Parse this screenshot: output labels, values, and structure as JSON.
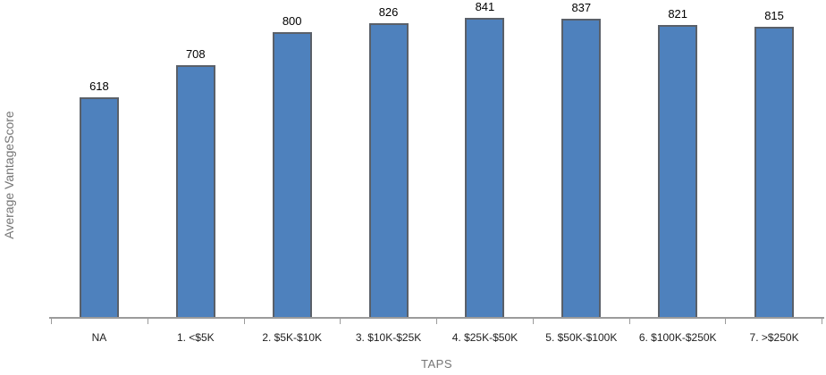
{
  "chart_data": {
    "type": "bar",
    "categories": [
      "NA",
      "1. <$5K",
      "2. $5K-$10K",
      "3. $10K-$25K",
      "4. $25K-$50K",
      "5. $50K-$100K",
      "6. $100K-$250K",
      "7. >$250K"
    ],
    "values": [
      618,
      708,
      800,
      826,
      841,
      837,
      821,
      815
    ],
    "title": "",
    "xlabel": "TAPS",
    "ylabel": "Average VantageScore",
    "ylim": [
      0,
      890
    ],
    "grid": false,
    "legend": "none",
    "value_labels_shown": true
  },
  "colors": {
    "bar_fill": "#4E81BD",
    "bar_border": "#5A6069",
    "axis_line": "#9B9B9B",
    "value_label": "#000000",
    "category_label": "#1E1E1E",
    "axis_title": "#757575",
    "background": "#FFFFFF"
  }
}
